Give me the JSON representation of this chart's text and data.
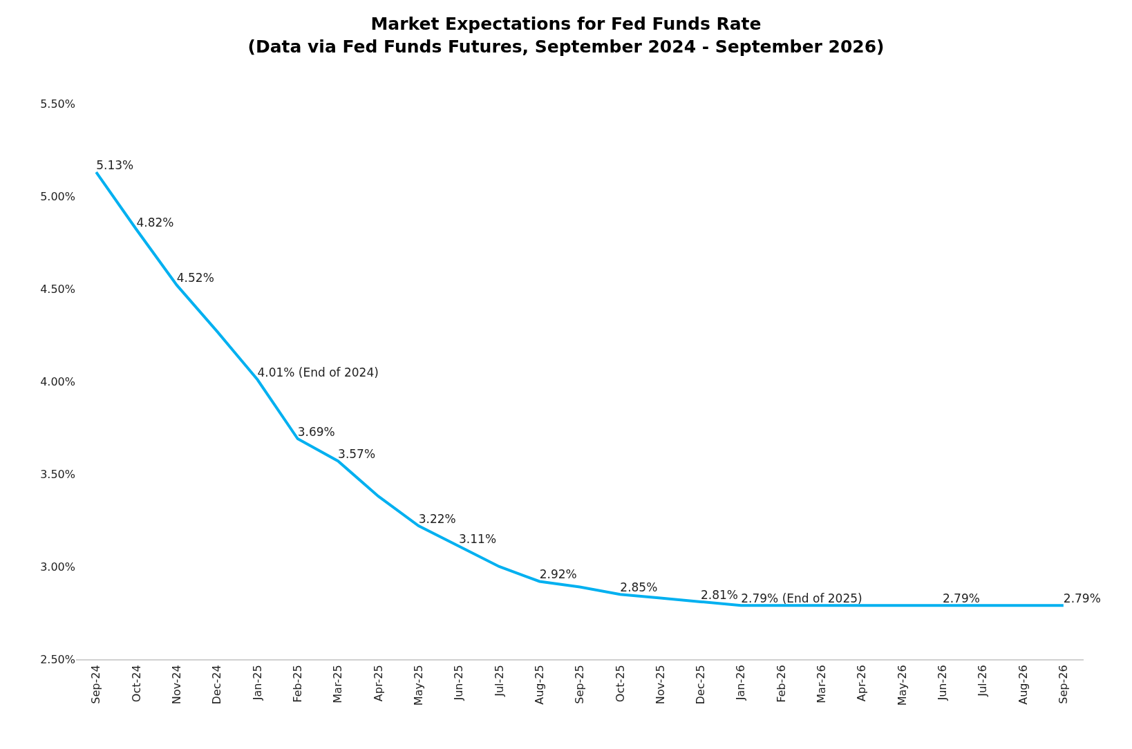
{
  "chart_data": {
    "type": "line",
    "title": "Market Expectations for Fed Funds Rate",
    "subtitle": "(Data via Fed Funds Futures, September 2024 - September 2026)",
    "categories": [
      "Sep-24",
      "Oct-24",
      "Nov-24",
      "Dec-24",
      "Jan-25",
      "Feb-25",
      "Mar-25",
      "Apr-25",
      "May-25",
      "Jun-25",
      "Jul-25",
      "Aug-25",
      "Sep-25",
      "Oct-25",
      "Nov-25",
      "Dec-25",
      "Jan-26",
      "Feb-26",
      "Mar-26",
      "Apr-26",
      "May-26",
      "Jun-26",
      "Jul-26",
      "Aug-26",
      "Sep-26"
    ],
    "series": [
      {
        "color": "#00b0f0",
        "values": [
          5.13,
          4.82,
          4.52,
          4.27,
          4.01,
          3.69,
          3.57,
          3.38,
          3.22,
          3.11,
          3.0,
          2.92,
          2.89,
          2.85,
          2.83,
          2.81,
          2.79,
          2.79,
          2.79,
          2.79,
          2.79,
          2.79,
          2.79,
          2.79,
          2.79
        ],
        "value_labels": [
          "5.13%",
          "4.82%",
          "4.52%",
          null,
          "4.01% (End of 2024)",
          "3.69%",
          "3.57%",
          null,
          "3.22%",
          "3.11%",
          null,
          "2.92%",
          null,
          "2.85%",
          null,
          "2.81%",
          "2.79% (End of 2025)",
          null,
          null,
          null,
          null,
          "2.79%",
          null,
          null,
          "2.79%"
        ]
      }
    ],
    "ylim": [
      2.5,
      5.5
    ],
    "yticks": [
      {
        "value": 2.5,
        "label": "2.50%"
      },
      {
        "value": 3.0,
        "label": "3.00%"
      },
      {
        "value": 3.5,
        "label": "3.50%"
      },
      {
        "value": 4.0,
        "label": "4.00%"
      },
      {
        "value": 4.5,
        "label": "4.50%"
      },
      {
        "value": 5.0,
        "label": "5.00%"
      },
      {
        "value": 5.5,
        "label": "5.50%"
      }
    ],
    "legend": false,
    "marker": "none",
    "line_style": "solid"
  }
}
